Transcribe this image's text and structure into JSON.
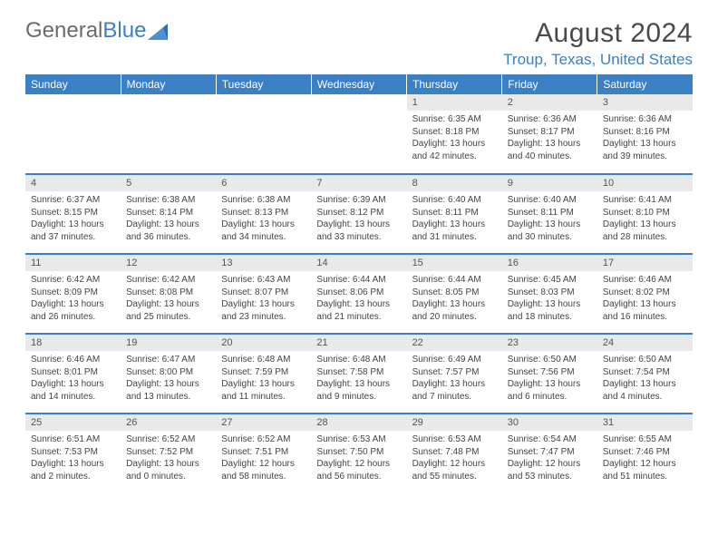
{
  "brand": {
    "part1": "General",
    "part2": "Blue"
  },
  "title": "August 2024",
  "location": "Troup, Texas, United States",
  "colors": {
    "header_bg": "#3b7fc4",
    "header_text": "#ffffff",
    "daynum_bg": "#e9e9e9",
    "row_divider": "#3b7fc4",
    "body_text": "#444444",
    "title_text": "#4a4a4a"
  },
  "weekdays": [
    "Sunday",
    "Monday",
    "Tuesday",
    "Wednesday",
    "Thursday",
    "Friday",
    "Saturday"
  ],
  "weeks": [
    [
      {
        "n": "",
        "empty": true
      },
      {
        "n": "",
        "empty": true
      },
      {
        "n": "",
        "empty": true
      },
      {
        "n": "",
        "empty": true
      },
      {
        "n": "1",
        "sunrise": "Sunrise: 6:35 AM",
        "sunset": "Sunset: 8:18 PM",
        "daylight": "Daylight: 13 hours and 42 minutes."
      },
      {
        "n": "2",
        "sunrise": "Sunrise: 6:36 AM",
        "sunset": "Sunset: 8:17 PM",
        "daylight": "Daylight: 13 hours and 40 minutes."
      },
      {
        "n": "3",
        "sunrise": "Sunrise: 6:36 AM",
        "sunset": "Sunset: 8:16 PM",
        "daylight": "Daylight: 13 hours and 39 minutes."
      }
    ],
    [
      {
        "n": "4",
        "sunrise": "Sunrise: 6:37 AM",
        "sunset": "Sunset: 8:15 PM",
        "daylight": "Daylight: 13 hours and 37 minutes."
      },
      {
        "n": "5",
        "sunrise": "Sunrise: 6:38 AM",
        "sunset": "Sunset: 8:14 PM",
        "daylight": "Daylight: 13 hours and 36 minutes."
      },
      {
        "n": "6",
        "sunrise": "Sunrise: 6:38 AM",
        "sunset": "Sunset: 8:13 PM",
        "daylight": "Daylight: 13 hours and 34 minutes."
      },
      {
        "n": "7",
        "sunrise": "Sunrise: 6:39 AM",
        "sunset": "Sunset: 8:12 PM",
        "daylight": "Daylight: 13 hours and 33 minutes."
      },
      {
        "n": "8",
        "sunrise": "Sunrise: 6:40 AM",
        "sunset": "Sunset: 8:11 PM",
        "daylight": "Daylight: 13 hours and 31 minutes."
      },
      {
        "n": "9",
        "sunrise": "Sunrise: 6:40 AM",
        "sunset": "Sunset: 8:11 PM",
        "daylight": "Daylight: 13 hours and 30 minutes."
      },
      {
        "n": "10",
        "sunrise": "Sunrise: 6:41 AM",
        "sunset": "Sunset: 8:10 PM",
        "daylight": "Daylight: 13 hours and 28 minutes."
      }
    ],
    [
      {
        "n": "11",
        "sunrise": "Sunrise: 6:42 AM",
        "sunset": "Sunset: 8:09 PM",
        "daylight": "Daylight: 13 hours and 26 minutes."
      },
      {
        "n": "12",
        "sunrise": "Sunrise: 6:42 AM",
        "sunset": "Sunset: 8:08 PM",
        "daylight": "Daylight: 13 hours and 25 minutes."
      },
      {
        "n": "13",
        "sunrise": "Sunrise: 6:43 AM",
        "sunset": "Sunset: 8:07 PM",
        "daylight": "Daylight: 13 hours and 23 minutes."
      },
      {
        "n": "14",
        "sunrise": "Sunrise: 6:44 AM",
        "sunset": "Sunset: 8:06 PM",
        "daylight": "Daylight: 13 hours and 21 minutes."
      },
      {
        "n": "15",
        "sunrise": "Sunrise: 6:44 AM",
        "sunset": "Sunset: 8:05 PM",
        "daylight": "Daylight: 13 hours and 20 minutes."
      },
      {
        "n": "16",
        "sunrise": "Sunrise: 6:45 AM",
        "sunset": "Sunset: 8:03 PM",
        "daylight": "Daylight: 13 hours and 18 minutes."
      },
      {
        "n": "17",
        "sunrise": "Sunrise: 6:46 AM",
        "sunset": "Sunset: 8:02 PM",
        "daylight": "Daylight: 13 hours and 16 minutes."
      }
    ],
    [
      {
        "n": "18",
        "sunrise": "Sunrise: 6:46 AM",
        "sunset": "Sunset: 8:01 PM",
        "daylight": "Daylight: 13 hours and 14 minutes."
      },
      {
        "n": "19",
        "sunrise": "Sunrise: 6:47 AM",
        "sunset": "Sunset: 8:00 PM",
        "daylight": "Daylight: 13 hours and 13 minutes."
      },
      {
        "n": "20",
        "sunrise": "Sunrise: 6:48 AM",
        "sunset": "Sunset: 7:59 PM",
        "daylight": "Daylight: 13 hours and 11 minutes."
      },
      {
        "n": "21",
        "sunrise": "Sunrise: 6:48 AM",
        "sunset": "Sunset: 7:58 PM",
        "daylight": "Daylight: 13 hours and 9 minutes."
      },
      {
        "n": "22",
        "sunrise": "Sunrise: 6:49 AM",
        "sunset": "Sunset: 7:57 PM",
        "daylight": "Daylight: 13 hours and 7 minutes."
      },
      {
        "n": "23",
        "sunrise": "Sunrise: 6:50 AM",
        "sunset": "Sunset: 7:56 PM",
        "daylight": "Daylight: 13 hours and 6 minutes."
      },
      {
        "n": "24",
        "sunrise": "Sunrise: 6:50 AM",
        "sunset": "Sunset: 7:54 PM",
        "daylight": "Daylight: 13 hours and 4 minutes."
      }
    ],
    [
      {
        "n": "25",
        "sunrise": "Sunrise: 6:51 AM",
        "sunset": "Sunset: 7:53 PM",
        "daylight": "Daylight: 13 hours and 2 minutes."
      },
      {
        "n": "26",
        "sunrise": "Sunrise: 6:52 AM",
        "sunset": "Sunset: 7:52 PM",
        "daylight": "Daylight: 13 hours and 0 minutes."
      },
      {
        "n": "27",
        "sunrise": "Sunrise: 6:52 AM",
        "sunset": "Sunset: 7:51 PM",
        "daylight": "Daylight: 12 hours and 58 minutes."
      },
      {
        "n": "28",
        "sunrise": "Sunrise: 6:53 AM",
        "sunset": "Sunset: 7:50 PM",
        "daylight": "Daylight: 12 hours and 56 minutes."
      },
      {
        "n": "29",
        "sunrise": "Sunrise: 6:53 AM",
        "sunset": "Sunset: 7:48 PM",
        "daylight": "Daylight: 12 hours and 55 minutes."
      },
      {
        "n": "30",
        "sunrise": "Sunrise: 6:54 AM",
        "sunset": "Sunset: 7:47 PM",
        "daylight": "Daylight: 12 hours and 53 minutes."
      },
      {
        "n": "31",
        "sunrise": "Sunrise: 6:55 AM",
        "sunset": "Sunset: 7:46 PM",
        "daylight": "Daylight: 12 hours and 51 minutes."
      }
    ]
  ]
}
